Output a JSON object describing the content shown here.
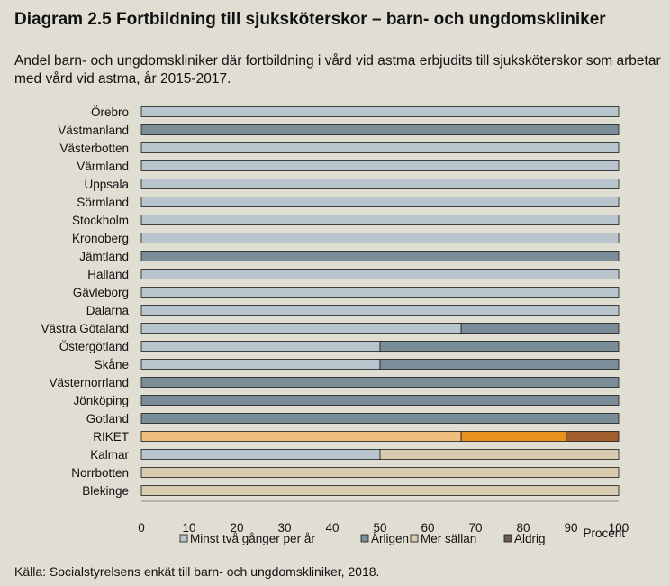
{
  "title": "Diagram 2.5 Fortbildning till sjuksköterskor –  barn- och ungdomskliniker",
  "subtitle": "Andel barn- och ungdomskliniker där fortbildning i vård vid astma erbjudits till sjuksköterskor som arbetar med vård vid astma, år 2015-2017.",
  "source": "Källa: Socialstyrelsens enkät till barn- och ungdomskliniker, 2018.",
  "chart_data": {
    "type": "bar",
    "orientation": "horizontal",
    "stacked": true,
    "title": "Diagram 2.5 Fortbildning till sjuksköterskor –  barn- och ungdomskliniker",
    "xlabel": "Procent",
    "xlim": [
      0,
      100
    ],
    "xticks": [
      0,
      10,
      20,
      30,
      40,
      50,
      60,
      70,
      80,
      90,
      100
    ],
    "legend_position": "bottom",
    "categories": [
      "Örebro",
      "Västmanland",
      "Västerbotten",
      "Värmland",
      "Uppsala",
      "Sörmland",
      "Stockholm",
      "Kronoberg",
      "Jämtland",
      "Halland",
      "Gävleborg",
      "Dalarna",
      "Västra Götaland",
      "Östergötland",
      "Skåne",
      "Västernorrland",
      "Jönköping",
      "Gotland",
      "RIKET",
      "Kalmar",
      "Norrbotten",
      "Blekinge"
    ],
    "series": [
      {
        "name": "Minst två gånger per år",
        "values": [
          100,
          0,
          100,
          100,
          100,
          100,
          100,
          100,
          0,
          100,
          100,
          100,
          67,
          50,
          50,
          0,
          0,
          0,
          67,
          50,
          0,
          0
        ]
      },
      {
        "name": "Årligen",
        "values": [
          0,
          100,
          0,
          0,
          0,
          0,
          0,
          0,
          100,
          0,
          0,
          0,
          33,
          50,
          50,
          100,
          100,
          100,
          22,
          0,
          0,
          0
        ]
      },
      {
        "name": "Mer sällan",
        "values": [
          0,
          0,
          0,
          0,
          0,
          0,
          0,
          0,
          0,
          0,
          0,
          0,
          0,
          0,
          0,
          0,
          0,
          0,
          0,
          50,
          100,
          100
        ]
      },
      {
        "name": "Aldrig",
        "values": [
          0,
          0,
          0,
          0,
          0,
          0,
          0,
          0,
          0,
          0,
          0,
          0,
          0,
          0,
          0,
          0,
          0,
          0,
          11,
          0,
          0,
          0
        ]
      }
    ],
    "colors": {
      "normal": [
        "#b9c5cc",
        "#7b8d98",
        "#d8cbb0",
        "#6b5d52"
      ],
      "highlight": [
        "#f0bd7c",
        "#e7921f",
        "#ddd0b0",
        "#a05e2c"
      ]
    },
    "highlight_category": "RIKET"
  }
}
